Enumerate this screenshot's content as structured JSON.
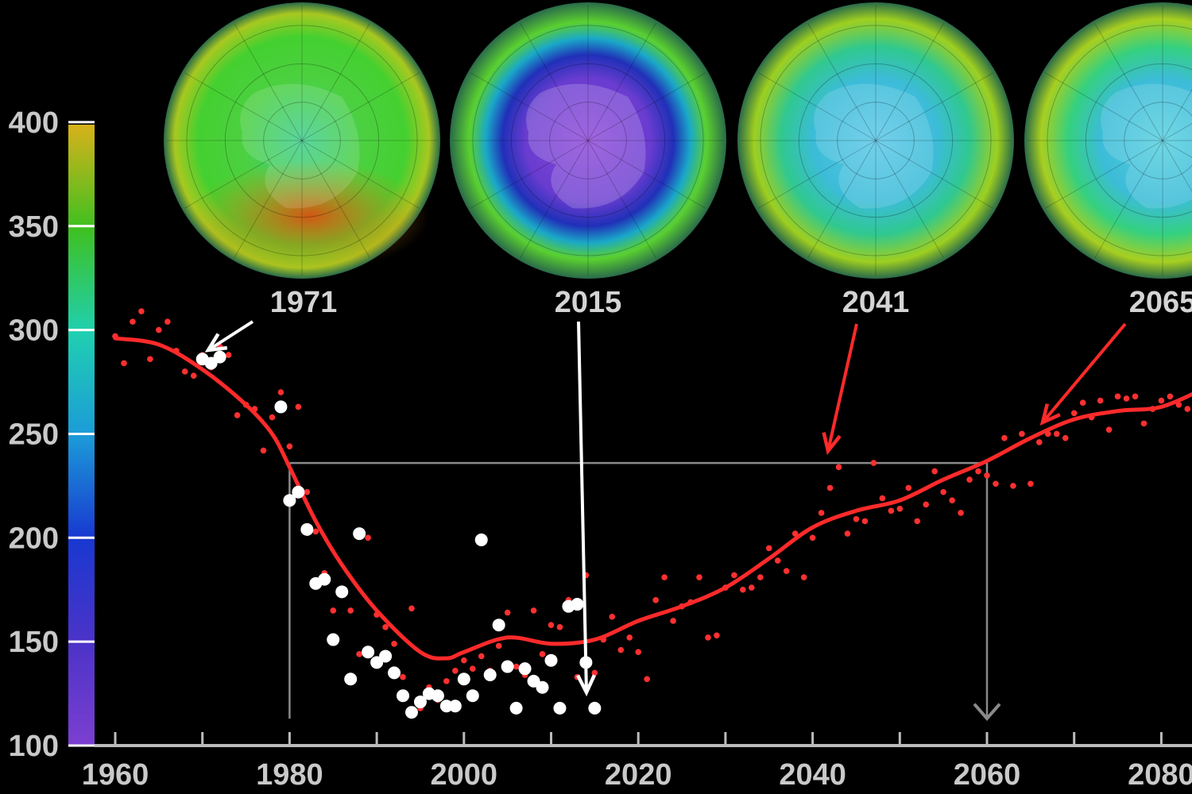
{
  "colors": {
    "background": "#000000",
    "model_curve": "#ff2a2a",
    "model_points": "#ff3030",
    "observations": "#ffffff",
    "reference_lines": "#8a8a8a",
    "arrow_white": "#ffffff",
    "arrow_red": "#ff2a2a",
    "axis": "#bbbbbb"
  },
  "colorbar": {
    "min": 100,
    "max": 400,
    "ticks": [
      "100",
      "150",
      "200",
      "250",
      "300",
      "350",
      "400"
    ],
    "stops": [
      {
        "value": 100,
        "color": "#7b3fd0"
      },
      {
        "value": 150,
        "color": "#4c33c8"
      },
      {
        "value": 200,
        "color": "#1838d0"
      },
      {
        "value": 250,
        "color": "#1c9bd8"
      },
      {
        "value": 300,
        "color": "#1fd0b0"
      },
      {
        "value": 350,
        "color": "#3fc020"
      },
      {
        "value": 400,
        "color": "#d8b21a"
      }
    ]
  },
  "globes": [
    {
      "year": "1971",
      "center": "#3fcf8e",
      "mid": "#44d030",
      "rim": "#e0a020",
      "type": "1971"
    },
    {
      "year": "2015",
      "center": "#8b44d8",
      "mid": "#2030b8",
      "rim": "#5ad030",
      "type": "2015"
    },
    {
      "year": "2041",
      "center": "#5cc8e8",
      "mid": "#30c890",
      "rim": "#9ecf20",
      "type": "2041"
    },
    {
      "year": "2065",
      "center": "#58d0e0",
      "mid": "#34d080",
      "rim": "#a8cf20",
      "type": "2065"
    }
  ],
  "chart_data": {
    "type": "scatter",
    "x_ticks": [
      "1960",
      "1980",
      "2000",
      "2020",
      "2040",
      "2060",
      "2080"
    ],
    "y_ticks": [
      "100",
      "150",
      "200",
      "250",
      "300",
      "350",
      "400"
    ],
    "xlim": [
      1960,
      2085
    ],
    "ylim": [
      100,
      400
    ],
    "series": [
      {
        "kind": "smoothed-model-curve",
        "x": [
          1960,
          1965,
          1970,
          1975,
          1978,
          1980,
          1983,
          1986,
          1990,
          1995,
          1998,
          2000,
          2005,
          2010,
          2015,
          2020,
          2025,
          2030,
          2035,
          2040,
          2045,
          2050,
          2055,
          2060,
          2065,
          2070,
          2075,
          2080,
          2085
        ],
        "y": [
          296,
          293,
          281,
          264,
          250,
          234,
          208,
          187,
          165,
          145,
          142,
          145,
          152,
          149,
          151,
          160,
          167,
          176,
          190,
          205,
          213,
          218,
          228,
          237,
          248,
          257,
          261,
          263,
          272
        ]
      },
      {
        "kind": "model-points",
        "x": [
          1960,
          1961,
          1962,
          1963,
          1964,
          1965,
          1966,
          1967,
          1968,
          1969,
          1970,
          1971,
          1972,
          1973,
          1974,
          1975,
          1976,
          1977,
          1978,
          1979,
          1980,
          1981,
          1982,
          1983,
          1984,
          1985,
          1986,
          1987,
          1988,
          1989,
          1990,
          1991,
          1992,
          1993,
          1994,
          1995,
          1996,
          1997,
          1998,
          1999,
          2000,
          2001,
          2002,
          2003,
          2004,
          2005,
          2006,
          2007,
          2008,
          2009,
          2010,
          2011,
          2012,
          2013,
          2014,
          2015,
          2016,
          2017,
          2018,
          2019,
          2020,
          2021,
          2022,
          2023,
          2024,
          2025,
          2026,
          2027,
          2028,
          2029,
          2030,
          2031,
          2032,
          2033,
          2034,
          2035,
          2036,
          2037,
          2038,
          2039,
          2040,
          2041,
          2042,
          2043,
          2044,
          2045,
          2046,
          2047,
          2048,
          2049,
          2050,
          2051,
          2052,
          2053,
          2054,
          2055,
          2056,
          2057,
          2058,
          2059,
          2060,
          2061,
          2062,
          2063,
          2064,
          2065,
          2066,
          2067,
          2068,
          2069,
          2070,
          2071,
          2072,
          2073,
          2074,
          2075,
          2076,
          2077,
          2078,
          2079,
          2080,
          2081,
          2082,
          2083,
          2084
        ],
        "y": [
          297,
          284,
          304,
          309,
          286,
          300,
          304,
          290,
          280,
          278,
          288,
          282,
          292,
          288,
          259,
          264,
          262,
          242,
          258,
          270,
          244,
          263,
          222,
          203,
          183,
          165,
          173,
          165,
          144,
          200,
          163,
          157,
          149,
          133,
          166,
          118,
          128,
          122,
          131,
          136,
          141,
          137,
          143,
          136,
          148,
          164,
          138,
          134,
          165,
          144,
          158,
          157,
          170,
          133,
          182,
          135,
          151,
          162,
          146,
          152,
          145,
          132,
          170,
          181,
          160,
          167,
          169,
          181,
          152,
          153,
          176,
          182,
          175,
          176,
          181,
          195,
          189,
          184,
          202,
          181,
          200,
          212,
          224,
          234,
          202,
          209,
          208,
          236,
          219,
          213,
          214,
          224,
          208,
          216,
          232,
          222,
          218,
          212,
          228,
          232,
          230,
          226,
          248,
          225,
          250,
          226,
          246,
          250,
          250,
          248,
          260,
          265,
          258,
          266,
          252,
          268,
          267,
          268,
          255,
          262,
          266,
          268,
          264,
          262,
          268
        ]
      },
      {
        "kind": "observations",
        "x": [
          1970,
          1971,
          1972,
          1979,
          1980,
          1981,
          1982,
          1983,
          1984,
          1985,
          1986,
          1987,
          1988,
          1989,
          1990,
          1991,
          1992,
          1993,
          1994,
          1995,
          1996,
          1997,
          1998,
          1999,
          2000,
          2001,
          2002,
          2003,
          2004,
          2005,
          2006,
          2007,
          2008,
          2009,
          2010,
          2011,
          2012,
          2013,
          2014,
          2015
        ],
        "y": [
          286,
          284,
          287,
          263,
          218,
          222,
          204,
          178,
          180,
          151,
          174,
          132,
          202,
          145,
          140,
          143,
          135,
          124,
          116,
          121,
          125,
          124,
          119,
          119,
          132,
          124,
          199,
          134,
          158,
          138,
          118,
          137,
          131,
          128,
          141,
          118,
          167,
          168,
          140,
          118
        ]
      }
    ],
    "reference_lines": [
      {
        "from": [
          1980,
          113
        ],
        "to": [
          1980,
          236
        ]
      },
      {
        "from": [
          1980,
          236
        ],
        "to": [
          2060,
          236
        ]
      },
      {
        "from": [
          2060,
          236
        ],
        "to": [
          2060,
          113
        ]
      }
    ],
    "annotation_arrows": [
      {
        "label": "1971",
        "color": "white",
        "from_px_anchor": "label"
      },
      {
        "label": "2015",
        "color": "white"
      },
      {
        "label": "2041",
        "color": "red"
      },
      {
        "label": "2065",
        "color": "red"
      }
    ]
  }
}
